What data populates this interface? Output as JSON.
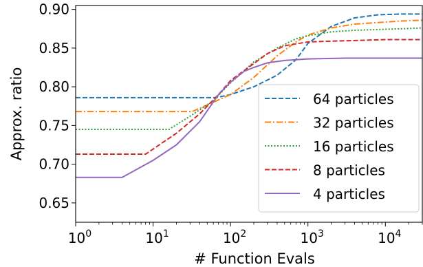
{
  "chart_data": {
    "type": "line",
    "xlabel": "# Function Evals",
    "ylabel": "Approx. ratio",
    "xscale": "log",
    "xlim": [
      1,
      30000
    ],
    "ylim": [
      0.625,
      0.905
    ],
    "grid": false,
    "legend_position": "lower right",
    "x_ticks": [
      {
        "value": 1,
        "label": "10",
        "exp": "0"
      },
      {
        "value": 10,
        "label": "10",
        "exp": "1"
      },
      {
        "value": 100,
        "label": "10",
        "exp": "2"
      },
      {
        "value": 1000,
        "label": "10",
        "exp": "3"
      },
      {
        "value": 10000,
        "label": "10",
        "exp": "4"
      }
    ],
    "y_ticks": [
      {
        "value": 0.65,
        "label": "0.65"
      },
      {
        "value": 0.7,
        "label": "0.70"
      },
      {
        "value": 0.75,
        "label": "0.75"
      },
      {
        "value": 0.8,
        "label": "0.80"
      },
      {
        "value": 0.85,
        "label": "0.85"
      },
      {
        "value": 0.9,
        "label": "0.90"
      }
    ],
    "series": [
      {
        "name": "64 particles",
        "color": "#1f77b4",
        "style": "dashed",
        "x": [
          1,
          65,
          100,
          200,
          400,
          700,
          1000,
          2000,
          4000,
          8000,
          16000,
          30000
        ],
        "y": [
          0.786,
          0.786,
          0.79,
          0.8,
          0.815,
          0.835,
          0.856,
          0.878,
          0.889,
          0.893,
          0.894,
          0.894
        ]
      },
      {
        "name": "32 particles",
        "color": "#ff7f0e",
        "style": "dashdot",
        "x": [
          1,
          32,
          60,
          100,
          200,
          400,
          700,
          1000,
          2000,
          4000,
          8000,
          16000,
          30000
        ],
        "y": [
          0.768,
          0.768,
          0.78,
          0.79,
          0.812,
          0.84,
          0.858,
          0.867,
          0.876,
          0.881,
          0.883,
          0.885,
          0.886
        ]
      },
      {
        "name": "16 particles",
        "color": "#2ca02c",
        "style": "dotted",
        "x": [
          1,
          16,
          30,
          60,
          100,
          200,
          400,
          700,
          1000,
          2000,
          4000,
          8000,
          16000,
          30000
        ],
        "y": [
          0.745,
          0.745,
          0.762,
          0.782,
          0.805,
          0.832,
          0.85,
          0.862,
          0.866,
          0.871,
          0.873,
          0.874,
          0.875,
          0.876
        ]
      },
      {
        "name": "8 particles",
        "color": "#d62728",
        "style": "dashed",
        "x": [
          1,
          8,
          20,
          40,
          70,
          100,
          200,
          300,
          500,
          1000,
          2000,
          5000,
          10000,
          30000
        ],
        "y": [
          0.713,
          0.713,
          0.74,
          0.765,
          0.79,
          0.808,
          0.83,
          0.843,
          0.853,
          0.858,
          0.859,
          0.86,
          0.861,
          0.861
        ]
      },
      {
        "name": "4 particles",
        "color": "#9467bd",
        "style": "solid",
        "x": [
          1,
          4,
          10,
          20,
          40,
          70,
          100,
          150,
          200,
          300,
          500,
          1000,
          3000,
          10000,
          30000
        ],
        "y": [
          0.683,
          0.683,
          0.705,
          0.725,
          0.755,
          0.79,
          0.806,
          0.82,
          0.825,
          0.831,
          0.834,
          0.836,
          0.837,
          0.837,
          0.837
        ]
      }
    ]
  }
}
